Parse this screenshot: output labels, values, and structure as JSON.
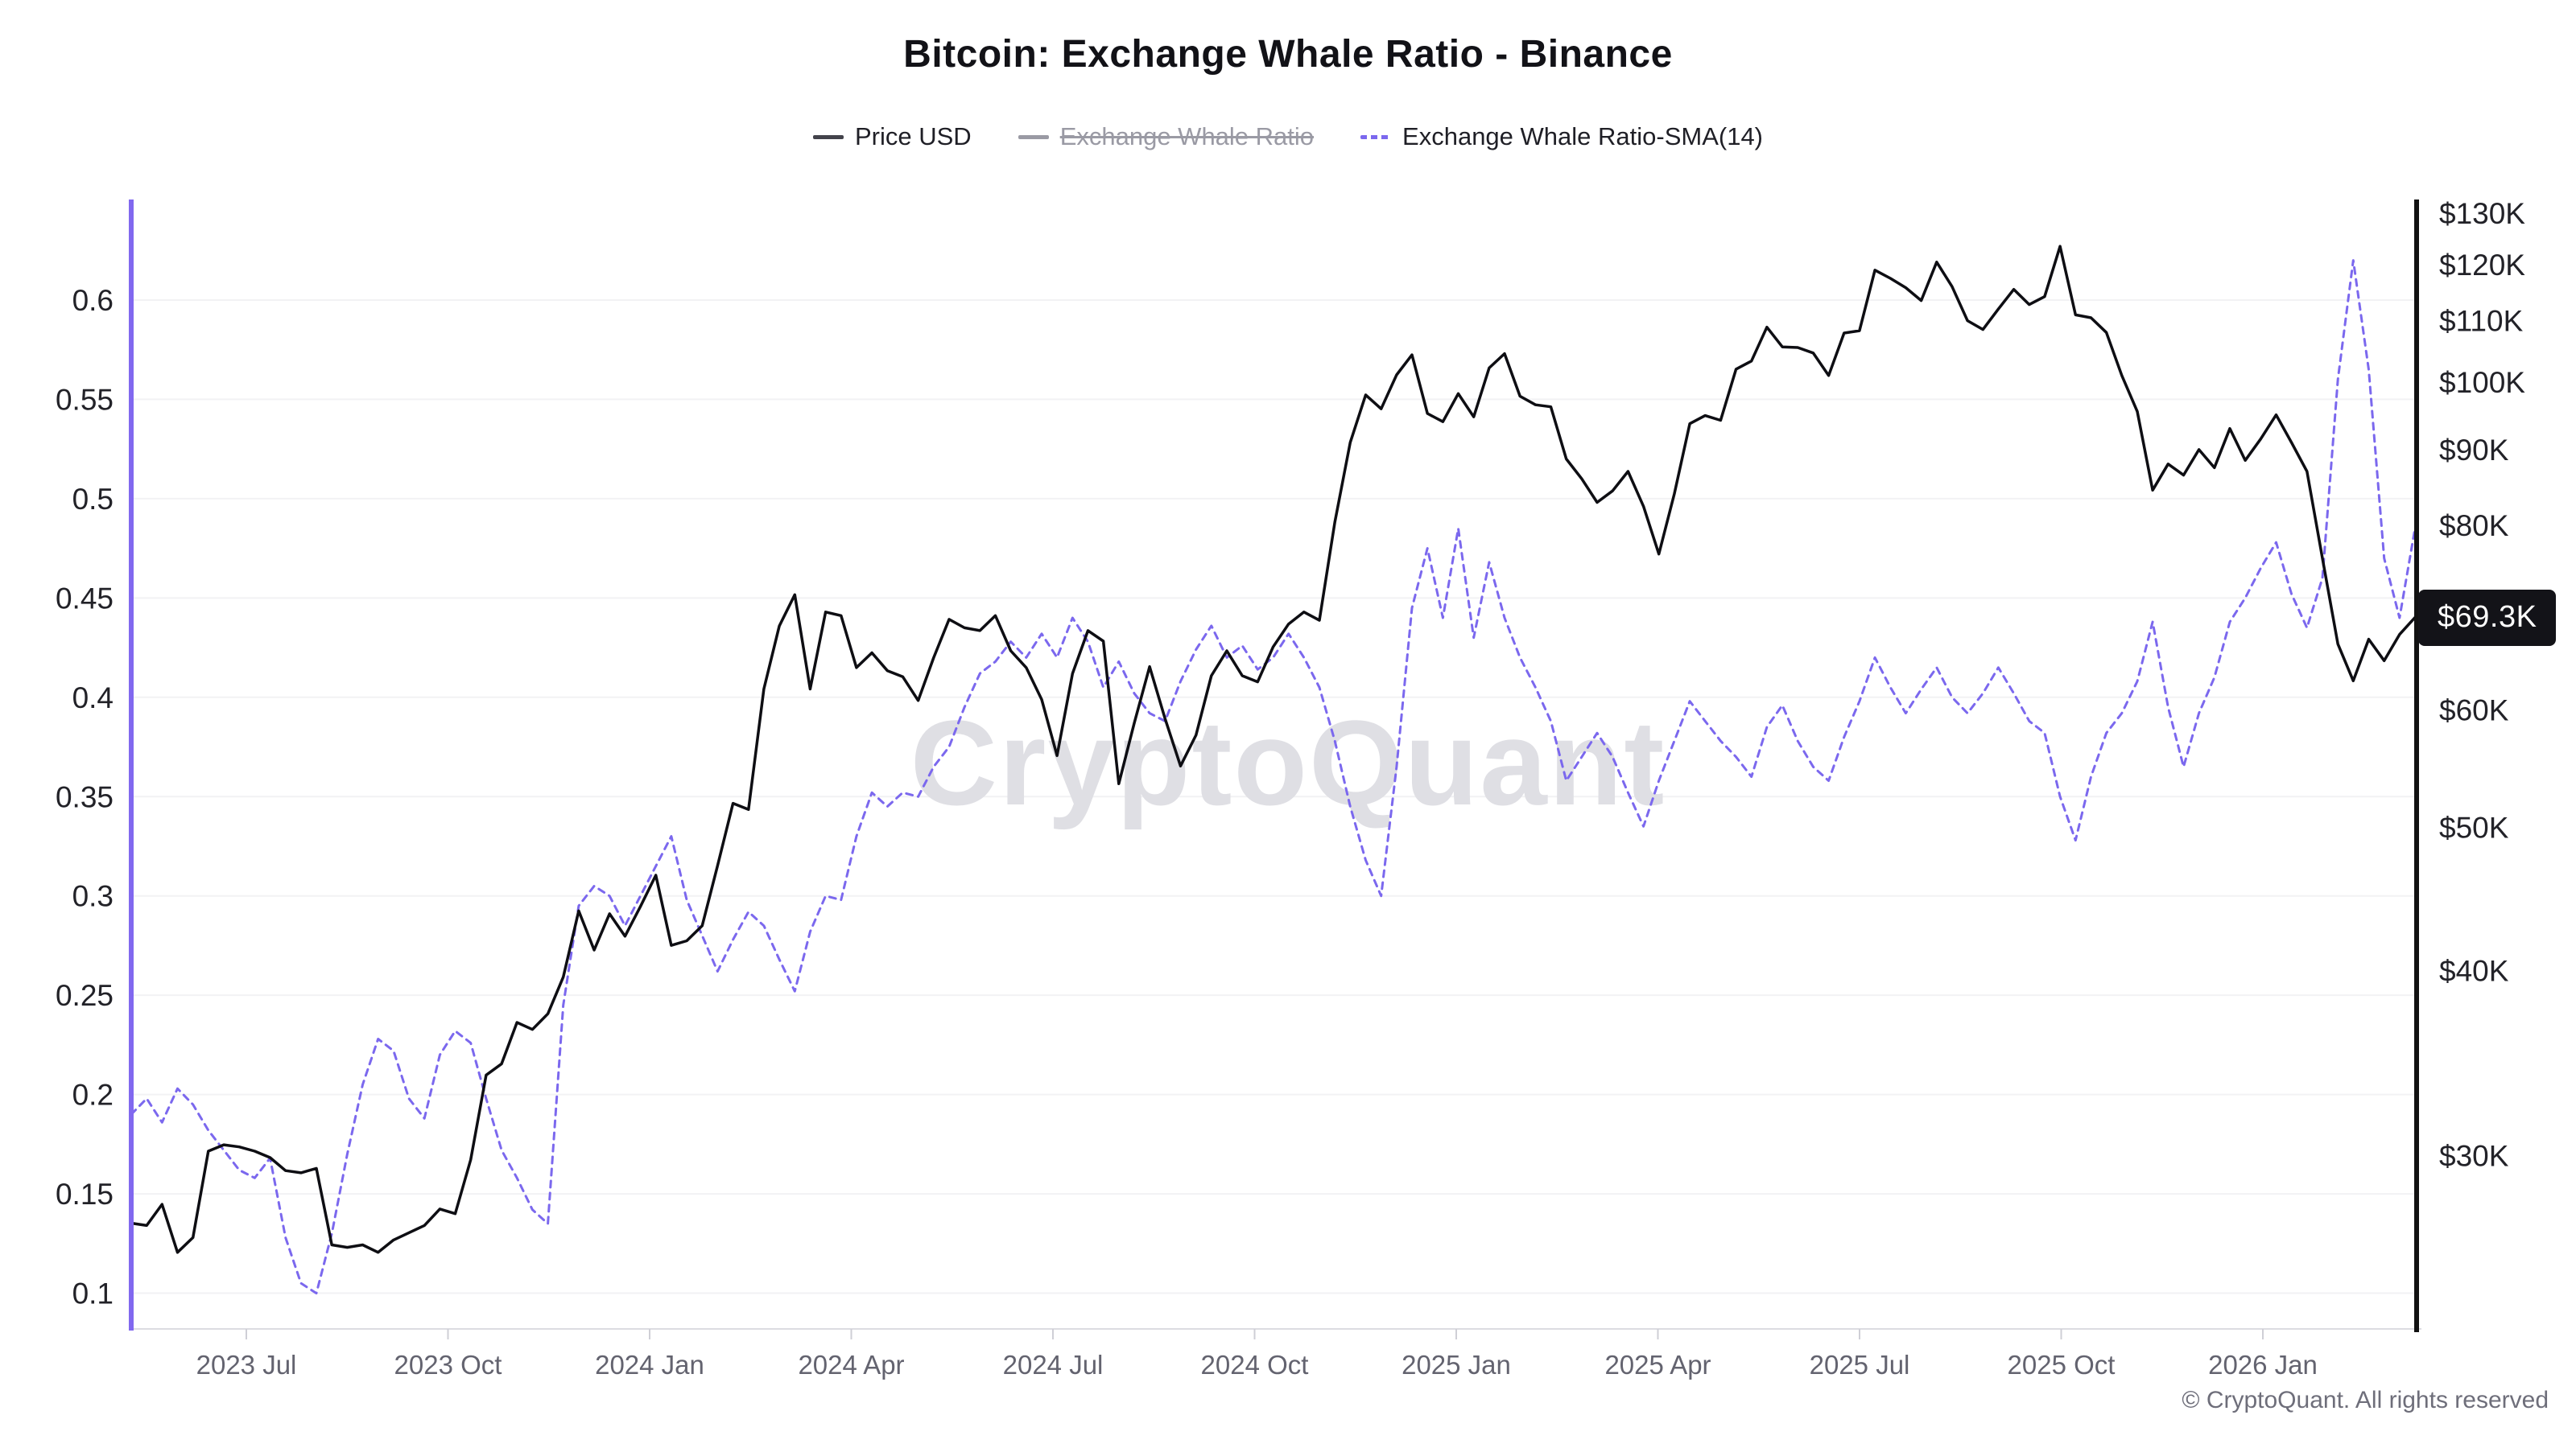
{
  "title": "Bitcoin: Exchange Whale Ratio - Binance",
  "legend": {
    "items": [
      {
        "label": "Price USD",
        "color": "#16161d",
        "style": "solid",
        "enabled": true
      },
      {
        "label": "Exchange Whale Ratio",
        "color": "#9a9aa4",
        "style": "solid",
        "enabled": false
      },
      {
        "label": "Exchange Whale Ratio-SMA(14)",
        "color": "#7b68ee",
        "style": "dashed",
        "enabled": true
      }
    ]
  },
  "watermark": "CryptoQuant",
  "copyright": "© CryptoQuant. All rights reserved",
  "current_price_label": "$69.3K",
  "colors": {
    "price_line": "#0e0e13",
    "sma_line": "#7b68ee",
    "left_axis_line": "#8168ef",
    "right_axis_line": "#111111",
    "gridline": "#f2f2f4",
    "bottom_axis": "#dcdce1",
    "tick_mark": "#cfcfd6",
    "axis_value_label": "#222228",
    "x_label": "#63636f",
    "watermark": "#dfdfe4",
    "badge_bg": "#131318",
    "badge_text": "#ffffff"
  },
  "chart_data": {
    "type": "line",
    "title": "Bitcoin: Exchange Whale Ratio - Binance",
    "x_start_date": "2023-05-15",
    "x_interval_days": 7,
    "x_end_date": "2026-03-16",
    "x_ticks": [
      {
        "label": "2023 Jul",
        "month_offset": 0
      },
      {
        "label": "2023 Oct",
        "month_offset": 3
      },
      {
        "label": "2024 Jan",
        "month_offset": 6
      },
      {
        "label": "2024 Apr",
        "month_offset": 9
      },
      {
        "label": "2024 Jul",
        "month_offset": 12
      },
      {
        "label": "2024 Oct",
        "month_offset": 15
      },
      {
        "label": "2025 Jan",
        "month_offset": 18
      },
      {
        "label": "2025 Apr",
        "month_offset": 21
      },
      {
        "label": "2025 Jul",
        "month_offset": 24
      },
      {
        "label": "2025 Oct",
        "month_offset": 27
      },
      {
        "label": "2026 Jan",
        "month_offset": 30
      }
    ],
    "left_axis": {
      "name": "Exchange Whale Ratio",
      "scale": "linear",
      "range": [
        0.082,
        0.6498
      ],
      "ticks": [
        {
          "value": 0.6,
          "label": "0.6"
        },
        {
          "value": 0.55,
          "label": "0.55"
        },
        {
          "value": 0.5,
          "label": "0.5"
        },
        {
          "value": 0.45,
          "label": "0.45"
        },
        {
          "value": 0.4,
          "label": "0.4"
        },
        {
          "value": 0.35,
          "label": "0.35"
        },
        {
          "value": 0.3,
          "label": "0.3"
        },
        {
          "value": 0.25,
          "label": "0.25"
        },
        {
          "value": 0.2,
          "label": "0.2"
        },
        {
          "value": 0.15,
          "label": "0.15"
        },
        {
          "value": 0.1,
          "label": "0.1"
        }
      ],
      "grid": true
    },
    "right_axis": {
      "name": "Price USD",
      "scale": "log",
      "range_thousands": [
        22.9,
        132.5
      ],
      "ticks": [
        {
          "value": 130,
          "label": "$130K"
        },
        {
          "value": 120,
          "label": "$120K"
        },
        {
          "value": 110,
          "label": "$110K"
        },
        {
          "value": 100,
          "label": "$100K"
        },
        {
          "value": 90,
          "label": "$90K"
        },
        {
          "value": 80,
          "label": "$80K"
        },
        {
          "value": 60,
          "label": "$60K"
        },
        {
          "value": 50,
          "label": "$50K"
        },
        {
          "value": 40,
          "label": "$40K"
        },
        {
          "value": 30,
          "label": "$30K"
        }
      ],
      "grid": false
    },
    "current_value": {
      "series": "Price USD",
      "value_thousands": 69.3,
      "label": "$69.3K"
    },
    "series": [
      {
        "name": "Price USD",
        "axis": "right",
        "unit": "USD thousands",
        "style": "solid",
        "visible": true,
        "values": [
          27.0,
          26.9,
          27.8,
          25.8,
          26.4,
          30.2,
          30.5,
          30.4,
          30.2,
          29.9,
          29.3,
          29.2,
          29.4,
          26.1,
          26.0,
          26.1,
          25.8,
          26.3,
          26.6,
          26.9,
          27.6,
          27.4,
          29.8,
          34.0,
          34.6,
          36.9,
          36.5,
          37.4,
          39.6,
          43.9,
          41.3,
          43.7,
          42.2,
          44.2,
          46.4,
          41.6,
          41.9,
          42.9,
          47.1,
          51.9,
          51.4,
          62.0,
          68.4,
          71.8,
          62.0,
          69.9,
          69.5,
          64.1,
          65.6,
          63.8,
          63.2,
          60.9,
          65.1,
          69.1,
          68.2,
          67.9,
          69.5,
          65.8,
          64.1,
          61.0,
          55.9,
          63.5,
          67.9,
          66.8,
          53.5,
          58.8,
          64.2,
          59.2,
          55.0,
          57.7,
          63.3,
          65.8,
          63.3,
          62.7,
          66.2,
          68.6,
          69.9,
          69.0,
          80.4,
          91.0,
          98.0,
          95.9,
          101.1,
          104.3,
          95.2,
          94.0,
          98.2,
          94.7,
          102.2,
          104.5,
          97.8,
          96.5,
          96.2,
          88.7,
          86.0,
          82.9,
          84.4,
          87.0,
          82.4,
          76.5,
          84.0,
          93.7,
          94.9,
          94.2,
          102.0,
          103.3,
          108.9,
          105.6,
          105.5,
          104.6,
          101.0,
          107.9,
          108.3,
          119.0,
          117.5,
          115.8,
          113.5,
          120.5,
          116.0,
          110.0,
          108.5,
          112.0,
          115.5,
          112.8,
          114.2,
          123.5,
          111.0,
          110.5,
          108.0,
          101.0,
          95.5,
          84.5,
          88.0,
          86.5,
          90.0,
          87.5,
          93.0,
          88.5,
          91.5,
          95.0,
          91.0,
          87.0,
          76.0,
          66.5,
          62.8,
          67.0,
          64.8,
          67.5,
          69.3
        ]
      },
      {
        "name": "Exchange Whale Ratio-SMA(14)",
        "axis": "left",
        "unit": "ratio",
        "style": "dashed",
        "visible": true,
        "values": [
          0.19,
          0.198,
          0.186,
          0.203,
          0.195,
          0.182,
          0.172,
          0.162,
          0.158,
          0.168,
          0.128,
          0.105,
          0.1,
          0.13,
          0.17,
          0.205,
          0.228,
          0.222,
          0.198,
          0.188,
          0.22,
          0.232,
          0.226,
          0.198,
          0.172,
          0.158,
          0.142,
          0.135,
          0.245,
          0.295,
          0.305,
          0.3,
          0.285,
          0.3,
          0.315,
          0.33,
          0.298,
          0.28,
          0.262,
          0.278,
          0.292,
          0.285,
          0.268,
          0.252,
          0.282,
          0.3,
          0.298,
          0.33,
          0.352,
          0.345,
          0.352,
          0.35,
          0.365,
          0.375,
          0.395,
          0.412,
          0.418,
          0.428,
          0.42,
          0.432,
          0.42,
          0.44,
          0.428,
          0.405,
          0.418,
          0.402,
          0.392,
          0.388,
          0.408,
          0.424,
          0.436,
          0.42,
          0.426,
          0.414,
          0.42,
          0.432,
          0.42,
          0.405,
          0.378,
          0.345,
          0.318,
          0.3,
          0.365,
          0.445,
          0.475,
          0.44,
          0.485,
          0.43,
          0.468,
          0.44,
          0.42,
          0.405,
          0.388,
          0.358,
          0.37,
          0.382,
          0.37,
          0.352,
          0.335,
          0.358,
          0.378,
          0.398,
          0.388,
          0.378,
          0.37,
          0.36,
          0.385,
          0.396,
          0.378,
          0.365,
          0.358,
          0.38,
          0.398,
          0.42,
          0.405,
          0.392,
          0.404,
          0.415,
          0.4,
          0.392,
          0.402,
          0.415,
          0.402,
          0.388,
          0.382,
          0.35,
          0.328,
          0.36,
          0.382,
          0.392,
          0.408,
          0.438,
          0.395,
          0.365,
          0.392,
          0.41,
          0.438,
          0.45,
          0.465,
          0.478,
          0.452,
          0.435,
          0.46,
          0.56,
          0.62,
          0.565,
          0.47,
          0.44,
          0.485
        ]
      },
      {
        "name": "Exchange Whale Ratio",
        "axis": "left",
        "unit": "ratio",
        "style": "solid",
        "visible": false,
        "values": []
      }
    ]
  }
}
